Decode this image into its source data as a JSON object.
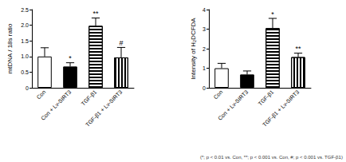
{
  "chart_data": [
    {
      "type": "bar",
      "y_label": "mtDNA / 18s ratio",
      "categories": [
        "Con",
        "Con + Lv-SIRT3",
        "TGF-β1",
        "TGF-β1 + Lv-SIRT3"
      ],
      "values": [
        1.0,
        0.68,
        1.98,
        0.97
      ],
      "errors": [
        0.28,
        0.12,
        0.25,
        0.32
      ],
      "annotations": [
        null,
        "*",
        "**",
        "#"
      ],
      "colors": [
        "#ffffff",
        "#000000",
        "#ffffff",
        "#ffffff"
      ],
      "ylim": [
        0,
        2.5
      ],
      "yticks": [
        0,
        0.5,
        {
          "value": 1,
          "label": "1.0"
        },
        1.5,
        {
          "value": 2,
          "label": "2.0"
        },
        2.5
      ],
      "grid": false
    },
    {
      "type": "bar",
      "y_label": "Intensity of H₂DCFDA",
      "categories": [
        "Con",
        "Con + Lv-SIRT3",
        "TGF-β1",
        "TGF-β1 + Lv-SIRT3"
      ],
      "values": [
        1.0,
        0.68,
        3.05,
        1.57
      ],
      "errors": [
        0.25,
        0.18,
        0.5,
        0.2
      ],
      "annotations": [
        null,
        null,
        "*",
        "**"
      ],
      "colors": [
        "#ffffff",
        "#000000",
        "#ffffff",
        "#ffffff"
      ],
      "ylim": [
        0,
        4
      ],
      "yticks": [
        0,
        1,
        2,
        3,
        4
      ],
      "grid": false,
      "footnote": "(*; p < 0.01 vs. Con, **; p < 0.001 vs. Con, #; p < 0.001 vs. TGF-β1)"
    }
  ]
}
